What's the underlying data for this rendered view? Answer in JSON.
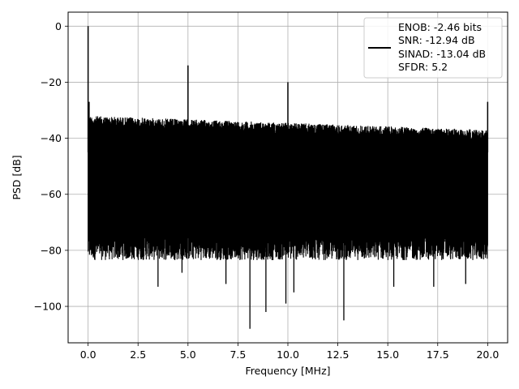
{
  "chart_data": {
    "type": "line",
    "title": "",
    "xlabel": "Frequency [MHz]",
    "ylabel": "PSD [dB]",
    "xlim": [
      -1.0,
      21.0
    ],
    "ylim": [
      -113.0,
      5.0
    ],
    "grid": true,
    "legend_position": "top-right",
    "line_color": "#000000",
    "x_ticks": [
      0.0,
      2.5,
      5.0,
      7.5,
      10.0,
      12.5,
      15.0,
      17.5,
      20.0
    ],
    "x_tick_labels": [
      "0.0",
      "2.5",
      "5.0",
      "7.5",
      "10.0",
      "12.5",
      "15.0",
      "17.5",
      "20.0"
    ],
    "y_ticks": [
      0,
      -20,
      -40,
      -60,
      -80,
      -100
    ],
    "y_tick_labels": [
      "0",
      "−20",
      "−40",
      "−60",
      "−80",
      "−100"
    ],
    "legend_lines": [
      "ENOB: -2.46 bits",
      "SNR: -12.94 dB",
      "SINAD: -13.04 dB",
      "SFDR: 5.2"
    ],
    "noise_band": {
      "x_start": 0.0,
      "x_end": 20.0,
      "upper_db_start": -32,
      "upper_db_end": -37,
      "lower_db": -80
    },
    "peaks": [
      {
        "x": 0.0,
        "y": 0
      },
      {
        "x": 0.05,
        "y": -27
      },
      {
        "x": 5.0,
        "y": -14
      },
      {
        "x": 10.0,
        "y": -20
      },
      {
        "x": 20.0,
        "y": -27
      }
    ],
    "dips": [
      {
        "x": 0.3,
        "y": -82
      },
      {
        "x": 3.5,
        "y": -93
      },
      {
        "x": 4.7,
        "y": -88
      },
      {
        "x": 6.9,
        "y": -92
      },
      {
        "x": 8.1,
        "y": -108
      },
      {
        "x": 8.9,
        "y": -102
      },
      {
        "x": 9.9,
        "y": -99
      },
      {
        "x": 10.3,
        "y": -95
      },
      {
        "x": 12.8,
        "y": -105
      },
      {
        "x": 15.3,
        "y": -93
      },
      {
        "x": 17.3,
        "y": -93
      },
      {
        "x": 18.9,
        "y": -92
      }
    ]
  }
}
